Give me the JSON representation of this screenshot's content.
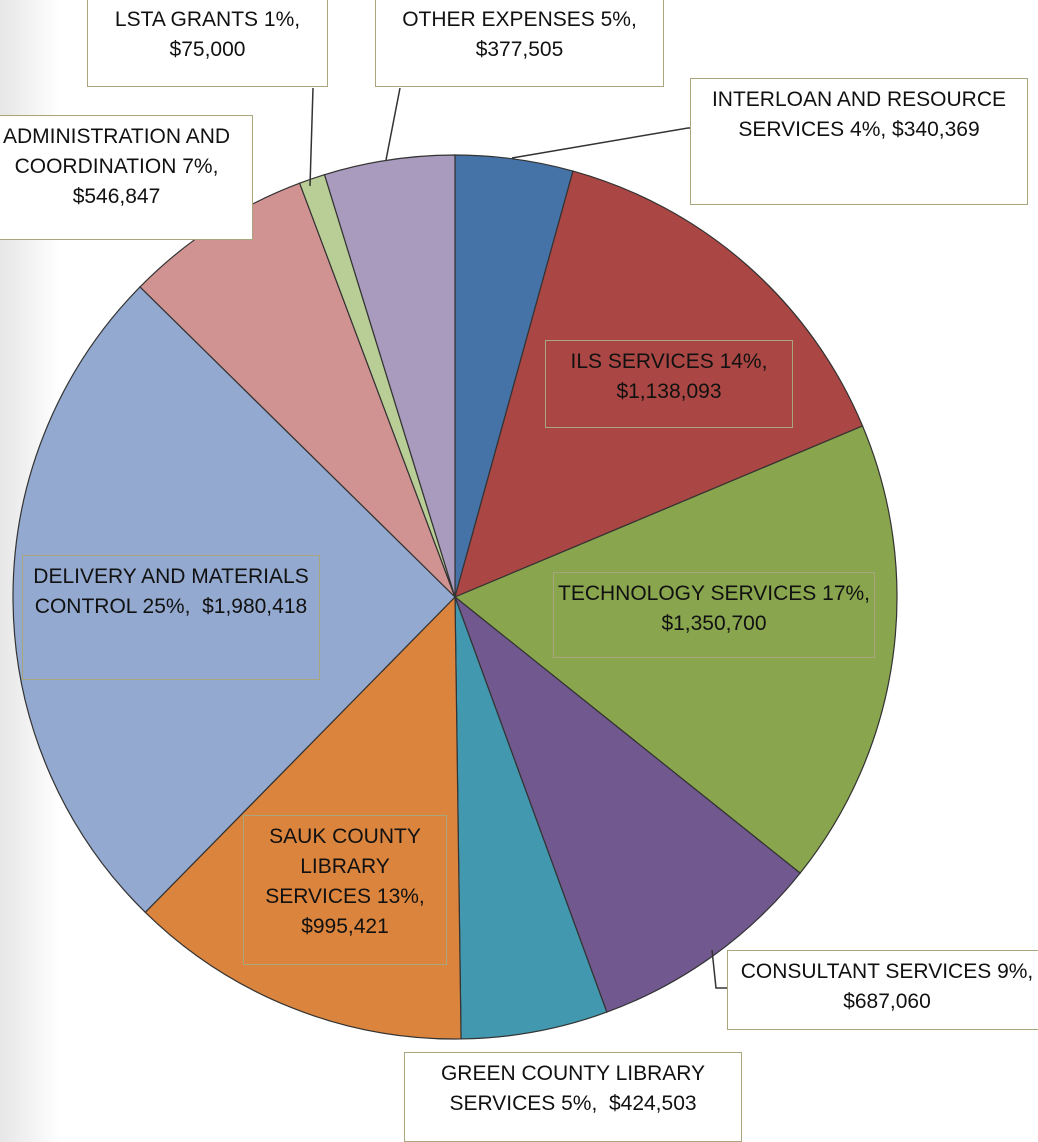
{
  "chart_data": {
    "type": "pie",
    "categories": [
      "INTERLOAN AND RESOURCE SERVICES",
      "ILS SERVICES",
      "TECHNOLOGY SERVICES",
      "CONSULTANT SERVICES",
      "GREEN COUNTY LIBRARY SERVICES",
      "SAUK COUNTY LIBRARY SERVICES",
      "DELIVERY AND MATERIALS CONTROL",
      "ADMINISTRATION AND COORDINATION",
      "LSTA GRANTS",
      "OTHER EXPENSES"
    ],
    "values": [
      340369,
      1138093,
      1350700,
      687060,
      424503,
      995421,
      1980418,
      546847,
      75000,
      377505
    ],
    "value_labels": [
      "4%, $340,369",
      "14%, $1,138,093",
      "17%,  $1,350,700",
      "9%,  $687,060",
      "5%,  $424,503",
      "13%, $995,421",
      "25%,  $1,980,418",
      "7%, $546,847",
      "1%, $75,000",
      "5%, $377,505"
    ],
    "colors": [
      "#4572a7",
      "#aa4643",
      "#89a54e",
      "#71588f",
      "#4198af",
      "#db843d",
      "#93a9cf",
      "#d19392",
      "#b9cd96",
      "#a99bbd"
    ]
  }
}
